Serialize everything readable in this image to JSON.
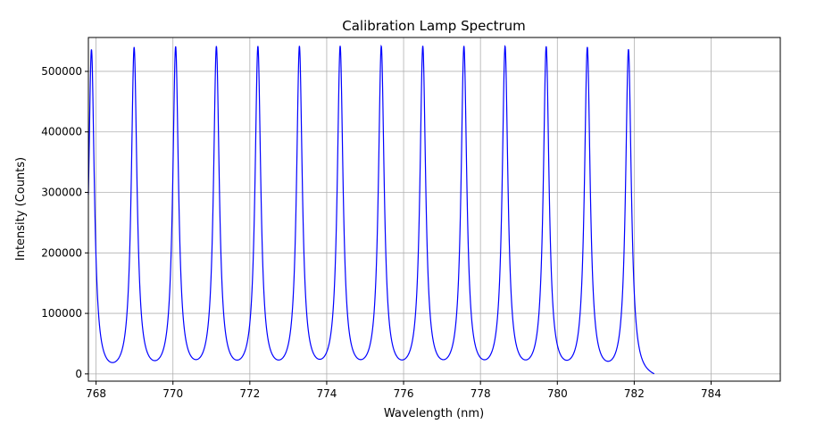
{
  "chart_data": {
    "type": "line",
    "title": "Calibration Lamp Spectrum",
    "xlabel": "Wavelength (nm)",
    "ylabel": "Intensity (Counts)",
    "xlim": [
      767.8,
      785.8
    ],
    "ylim": [
      -12000,
      556000
    ],
    "x_ticks": [
      768,
      770,
      772,
      774,
      776,
      778,
      780,
      782,
      784
    ],
    "y_ticks": [
      0,
      100000,
      200000,
      300000,
      400000,
      500000
    ],
    "grid": true,
    "line_color": "#0000ff",
    "series": [
      {
        "peak_wavelengths": [
          767.88,
          768.99,
          770.07,
          771.13,
          772.21,
          773.29,
          774.35,
          775.42,
          776.5,
          777.57,
          778.64,
          779.71,
          780.78,
          781.85
        ],
        "peak_intensity": 543000,
        "x_start": 767.8,
        "x_end": 782.52,
        "end_value": 16000
      }
    ]
  }
}
